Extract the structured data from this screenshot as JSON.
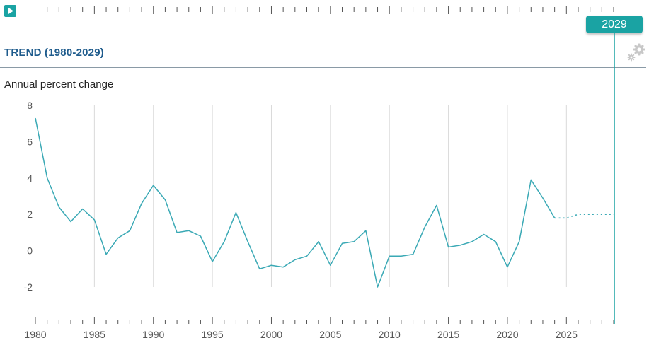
{
  "header": {
    "play_icon": "play-icon",
    "selected_year": "2029",
    "section_title": "TREND (1980-2029)",
    "settings_icon": "gear-icon"
  },
  "colors": {
    "accent": "#1aa3a3",
    "line": "#3aa9b5",
    "title": "#1e5b8c",
    "gridline": "#d9d9d9",
    "rule": "#8a9aa6"
  },
  "chart_data": {
    "type": "line",
    "title": "TREND (1980-2029)",
    "ylabel": "Annual percent change",
    "xlabel": "",
    "xlim": [
      1980,
      2029
    ],
    "ylim": [
      -2,
      8
    ],
    "y_ticks": [
      8,
      6,
      4,
      2,
      0,
      -2
    ],
    "x_ticks": [
      1980,
      1985,
      1990,
      1995,
      2000,
      2005,
      2010,
      2015,
      2020,
      2025
    ],
    "grid": "vertical",
    "marker_year": 2029,
    "series": [
      {
        "style": "solid",
        "x": [
          1980,
          1981,
          1982,
          1983,
          1984,
          1985,
          1986,
          1987,
          1988,
          1989,
          1990,
          1991,
          1992,
          1993,
          1994,
          1995,
          1996,
          1997,
          1998,
          1999,
          2000,
          2001,
          2002,
          2003,
          2004,
          2005,
          2006,
          2007,
          2008,
          2009,
          2010,
          2011,
          2012,
          2013,
          2014,
          2015,
          2016,
          2017,
          2018,
          2019,
          2020,
          2021,
          2022,
          2023,
          2024
        ],
        "values": [
          7.3,
          4.0,
          2.4,
          1.6,
          2.3,
          1.7,
          -0.2,
          0.7,
          1.1,
          2.6,
          3.6,
          2.8,
          1.0,
          1.1,
          0.8,
          -0.6,
          0.5,
          2.1,
          0.5,
          -1.0,
          -0.8,
          -0.9,
          -0.5,
          -0.3,
          0.5,
          -0.8,
          0.4,
          0.5,
          1.1,
          -2.0,
          -0.3,
          -0.3,
          -0.2,
          1.3,
          2.5,
          0.2,
          0.3,
          0.5,
          0.9,
          0.5,
          -0.9,
          0.5,
          3.9,
          2.9,
          1.8
        ]
      },
      {
        "style": "dotted",
        "x": [
          2024,
          2025,
          2026,
          2027,
          2028,
          2029
        ],
        "values": [
          1.8,
          1.8,
          2.0,
          2.0,
          2.0,
          2.0
        ]
      }
    ]
  }
}
